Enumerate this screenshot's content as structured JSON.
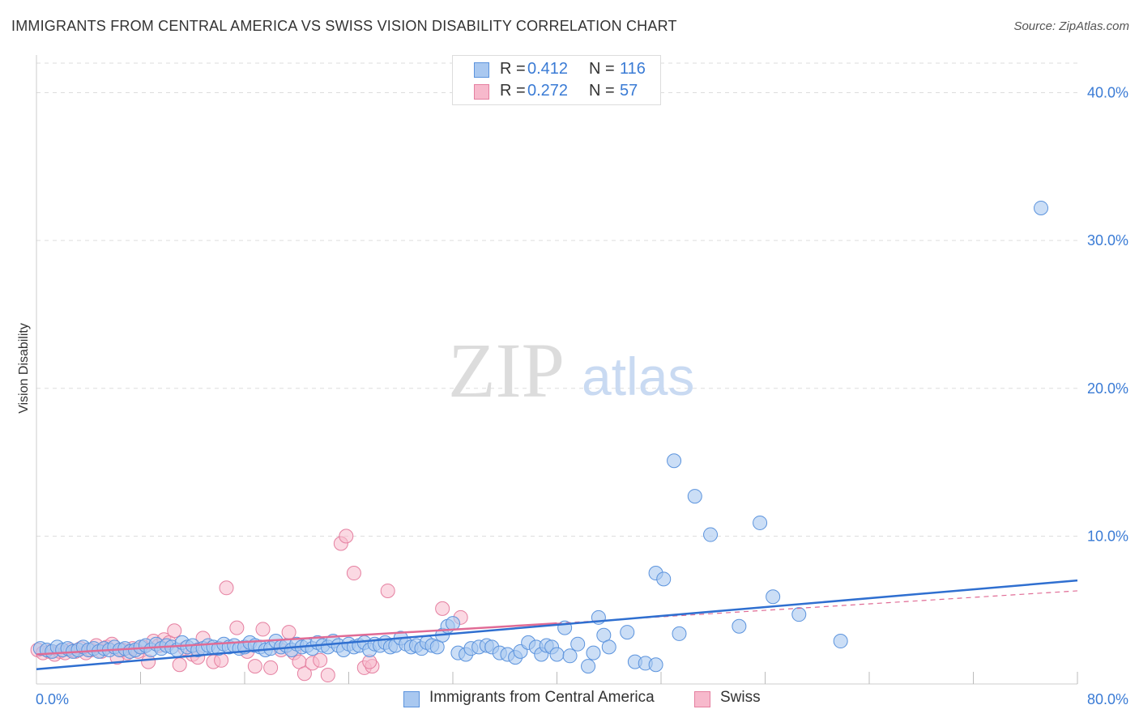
{
  "header": {
    "title": "IMMIGRANTS FROM CENTRAL AMERICA VS SWISS VISION DISABILITY CORRELATION CHART",
    "source": "Source: ZipAtlas.com"
  },
  "watermark": {
    "zip": "ZIP",
    "atlas": "atlas"
  },
  "legend": {
    "series": [
      {
        "r_label": "R =",
        "r_value": "0.412",
        "n_label": "N =",
        "n_value": "116"
      },
      {
        "r_label": "R =",
        "r_value": "0.272",
        "n_label": "N =",
        "n_value": "57"
      }
    ],
    "bottom": [
      "Immigrants from Central America",
      "Swiss"
    ]
  },
  "colors": {
    "series1_fill": "#a9c8f0",
    "series1_stroke": "#5b93dd",
    "series1_line": "#2f6fd0",
    "series2_fill": "#f7b9cc",
    "series2_stroke": "#e57fa0",
    "series2_line": "#e06b95",
    "tick_text": "#3a7bd5",
    "grid": "#dddddd"
  },
  "chart_data": {
    "type": "scatter",
    "title": "IMMIGRANTS FROM CENTRAL AMERICA VS SWISS VISION DISABILITY CORRELATION CHART",
    "xlabel": "",
    "ylabel": "Vision Disability",
    "xlim": [
      0,
      80
    ],
    "ylim": [
      0,
      42
    ],
    "x_tick_labels": [
      {
        "value": 0,
        "label": "0.0%"
      },
      {
        "value": 80,
        "label": "80.0%"
      }
    ],
    "y_ticks": [
      {
        "value": 10,
        "label": "10.0%"
      },
      {
        "value": 20,
        "label": "20.0%"
      },
      {
        "value": 30,
        "label": "30.0%"
      },
      {
        "value": 40,
        "label": "40.0%"
      }
    ],
    "x_minor_ticks": [
      8,
      16,
      24,
      32,
      40,
      48,
      56,
      64,
      72,
      80
    ],
    "grid": true,
    "legend_position": "top-center",
    "series": [
      {
        "name": "Immigrants from Central America",
        "r": 0.412,
        "n": 116,
        "trend": {
          "x": [
            0,
            80
          ],
          "y": [
            1.0,
            7.0
          ]
        },
        "points": [
          [
            0.3,
            2.4
          ],
          [
            0.8,
            2.3
          ],
          [
            1.2,
            2.2
          ],
          [
            1.6,
            2.5
          ],
          [
            2.0,
            2.3
          ],
          [
            2.4,
            2.4
          ],
          [
            2.8,
            2.2
          ],
          [
            3.2,
            2.3
          ],
          [
            3.6,
            2.5
          ],
          [
            4.0,
            2.3
          ],
          [
            4.4,
            2.4
          ],
          [
            4.8,
            2.2
          ],
          [
            5.2,
            2.4
          ],
          [
            5.6,
            2.3
          ],
          [
            6.0,
            2.5
          ],
          [
            6.4,
            2.3
          ],
          [
            6.8,
            2.4
          ],
          [
            7.2,
            2.2
          ],
          [
            7.6,
            2.3
          ],
          [
            8.0,
            2.5
          ],
          [
            8.4,
            2.6
          ],
          [
            8.8,
            2.3
          ],
          [
            9.2,
            2.7
          ],
          [
            9.6,
            2.4
          ],
          [
            10.0,
            2.6
          ],
          [
            10.4,
            2.5
          ],
          [
            10.8,
            2.3
          ],
          [
            11.2,
            2.8
          ],
          [
            11.6,
            2.5
          ],
          [
            12.0,
            2.6
          ],
          [
            12.4,
            2.3
          ],
          [
            12.8,
            2.4
          ],
          [
            13.2,
            2.6
          ],
          [
            13.6,
            2.5
          ],
          [
            14.0,
            2.4
          ],
          [
            14.4,
            2.7
          ],
          [
            14.8,
            2.5
          ],
          [
            15.2,
            2.6
          ],
          [
            15.6,
            2.4
          ],
          [
            16.0,
            2.5
          ],
          [
            16.4,
            2.8
          ],
          [
            16.8,
            2.6
          ],
          [
            17.2,
            2.5
          ],
          [
            17.6,
            2.3
          ],
          [
            18.0,
            2.4
          ],
          [
            18.4,
            2.9
          ],
          [
            18.8,
            2.5
          ],
          [
            19.2,
            2.6
          ],
          [
            19.6,
            2.3
          ],
          [
            20.0,
            2.7
          ],
          [
            20.4,
            2.5
          ],
          [
            20.8,
            2.6
          ],
          [
            21.2,
            2.4
          ],
          [
            21.6,
            2.8
          ],
          [
            22.0,
            2.6
          ],
          [
            22.4,
            2.5
          ],
          [
            22.8,
            2.9
          ],
          [
            23.2,
            2.6
          ],
          [
            23.6,
            2.3
          ],
          [
            24.0,
            2.7
          ],
          [
            24.4,
            2.5
          ],
          [
            24.8,
            2.6
          ],
          [
            25.2,
            2.8
          ],
          [
            25.6,
            2.3
          ],
          [
            26.0,
            2.7
          ],
          [
            26.4,
            2.6
          ],
          [
            26.8,
            2.8
          ],
          [
            27.2,
            2.5
          ],
          [
            27.6,
            2.6
          ],
          [
            28.0,
            3.1
          ],
          [
            28.4,
            2.7
          ],
          [
            28.8,
            2.5
          ],
          [
            29.2,
            2.6
          ],
          [
            29.6,
            2.4
          ],
          [
            30.0,
            2.8
          ],
          [
            30.4,
            2.6
          ],
          [
            30.8,
            2.5
          ],
          [
            31.2,
            3.3
          ],
          [
            31.6,
            3.9
          ],
          [
            32.0,
            4.1
          ],
          [
            32.4,
            2.1
          ],
          [
            33.0,
            2.0
          ],
          [
            33.4,
            2.4
          ],
          [
            34.0,
            2.5
          ],
          [
            34.6,
            2.6
          ],
          [
            35.0,
            2.5
          ],
          [
            35.6,
            2.1
          ],
          [
            36.2,
            2.0
          ],
          [
            36.8,
            1.8
          ],
          [
            37.2,
            2.2
          ],
          [
            37.8,
            2.8
          ],
          [
            38.4,
            2.5
          ],
          [
            38.8,
            2.0
          ],
          [
            39.2,
            2.6
          ],
          [
            39.6,
            2.5
          ],
          [
            40.0,
            2.0
          ],
          [
            40.6,
            3.8
          ],
          [
            41.0,
            1.9
          ],
          [
            41.6,
            2.7
          ],
          [
            42.4,
            1.2
          ],
          [
            42.8,
            2.1
          ],
          [
            43.2,
            4.5
          ],
          [
            43.6,
            3.3
          ],
          [
            44.0,
            2.5
          ],
          [
            45.4,
            3.5
          ],
          [
            46.0,
            1.5
          ],
          [
            46.8,
            1.4
          ],
          [
            47.6,
            7.5
          ],
          [
            47.6,
            1.3
          ],
          [
            48.2,
            7.1
          ],
          [
            49.4,
            3.4
          ],
          [
            50.6,
            12.7
          ],
          [
            51.8,
            10.1
          ],
          [
            54.0,
            3.9
          ],
          [
            55.6,
            10.9
          ],
          [
            56.6,
            5.9
          ],
          [
            58.6,
            4.7
          ],
          [
            61.8,
            2.9
          ],
          [
            49.0,
            15.1
          ],
          [
            77.2,
            32.2
          ]
        ]
      },
      {
        "name": "Swiss",
        "r": 0.272,
        "n": 57,
        "trend": {
          "x": [
            0,
            40
          ],
          "y": [
            2.0,
            4.1
          ]
        },
        "trend_extension": {
          "x": [
            40,
            80
          ],
          "y": [
            4.1,
            6.3
          ]
        },
        "points": [
          [
            0.1,
            2.3
          ],
          [
            0.5,
            2.1
          ],
          [
            1.0,
            2.2
          ],
          [
            1.4,
            2.0
          ],
          [
            1.8,
            2.2
          ],
          [
            2.2,
            2.1
          ],
          [
            2.6,
            2.3
          ],
          [
            3.0,
            2.2
          ],
          [
            3.4,
            2.4
          ],
          [
            3.8,
            2.1
          ],
          [
            4.2,
            2.3
          ],
          [
            4.6,
            2.6
          ],
          [
            5.0,
            2.2
          ],
          [
            5.4,
            2.5
          ],
          [
            5.8,
            2.7
          ],
          [
            6.2,
            1.8
          ],
          [
            6.6,
            2.3
          ],
          [
            7.0,
            2.1
          ],
          [
            7.4,
            2.4
          ],
          [
            7.8,
            2.2
          ],
          [
            8.2,
            2.5
          ],
          [
            8.6,
            1.5
          ],
          [
            9.0,
            2.9
          ],
          [
            9.4,
            2.6
          ],
          [
            9.8,
            3.0
          ],
          [
            10.2,
            2.8
          ],
          [
            10.6,
            3.6
          ],
          [
            11.0,
            1.3
          ],
          [
            11.4,
            2.4
          ],
          [
            12.0,
            2.0
          ],
          [
            12.4,
            1.8
          ],
          [
            12.8,
            3.1
          ],
          [
            13.6,
            1.5
          ],
          [
            14.2,
            1.6
          ],
          [
            14.6,
            6.5
          ],
          [
            15.4,
            3.8
          ],
          [
            16.2,
            2.2
          ],
          [
            16.8,
            1.2
          ],
          [
            17.4,
            3.7
          ],
          [
            18.0,
            1.1
          ],
          [
            18.8,
            2.3
          ],
          [
            19.4,
            3.5
          ],
          [
            19.8,
            2.1
          ],
          [
            20.2,
            1.5
          ],
          [
            20.6,
            0.7
          ],
          [
            21.2,
            1.4
          ],
          [
            21.8,
            1.6
          ],
          [
            22.4,
            0.6
          ],
          [
            23.4,
            9.5
          ],
          [
            23.8,
            10.0
          ],
          [
            24.4,
            7.5
          ],
          [
            25.2,
            1.1
          ],
          [
            25.8,
            1.2
          ],
          [
            25.6,
            1.5
          ],
          [
            27.0,
            6.3
          ],
          [
            31.2,
            5.1
          ],
          [
            32.6,
            4.5
          ]
        ]
      }
    ]
  }
}
